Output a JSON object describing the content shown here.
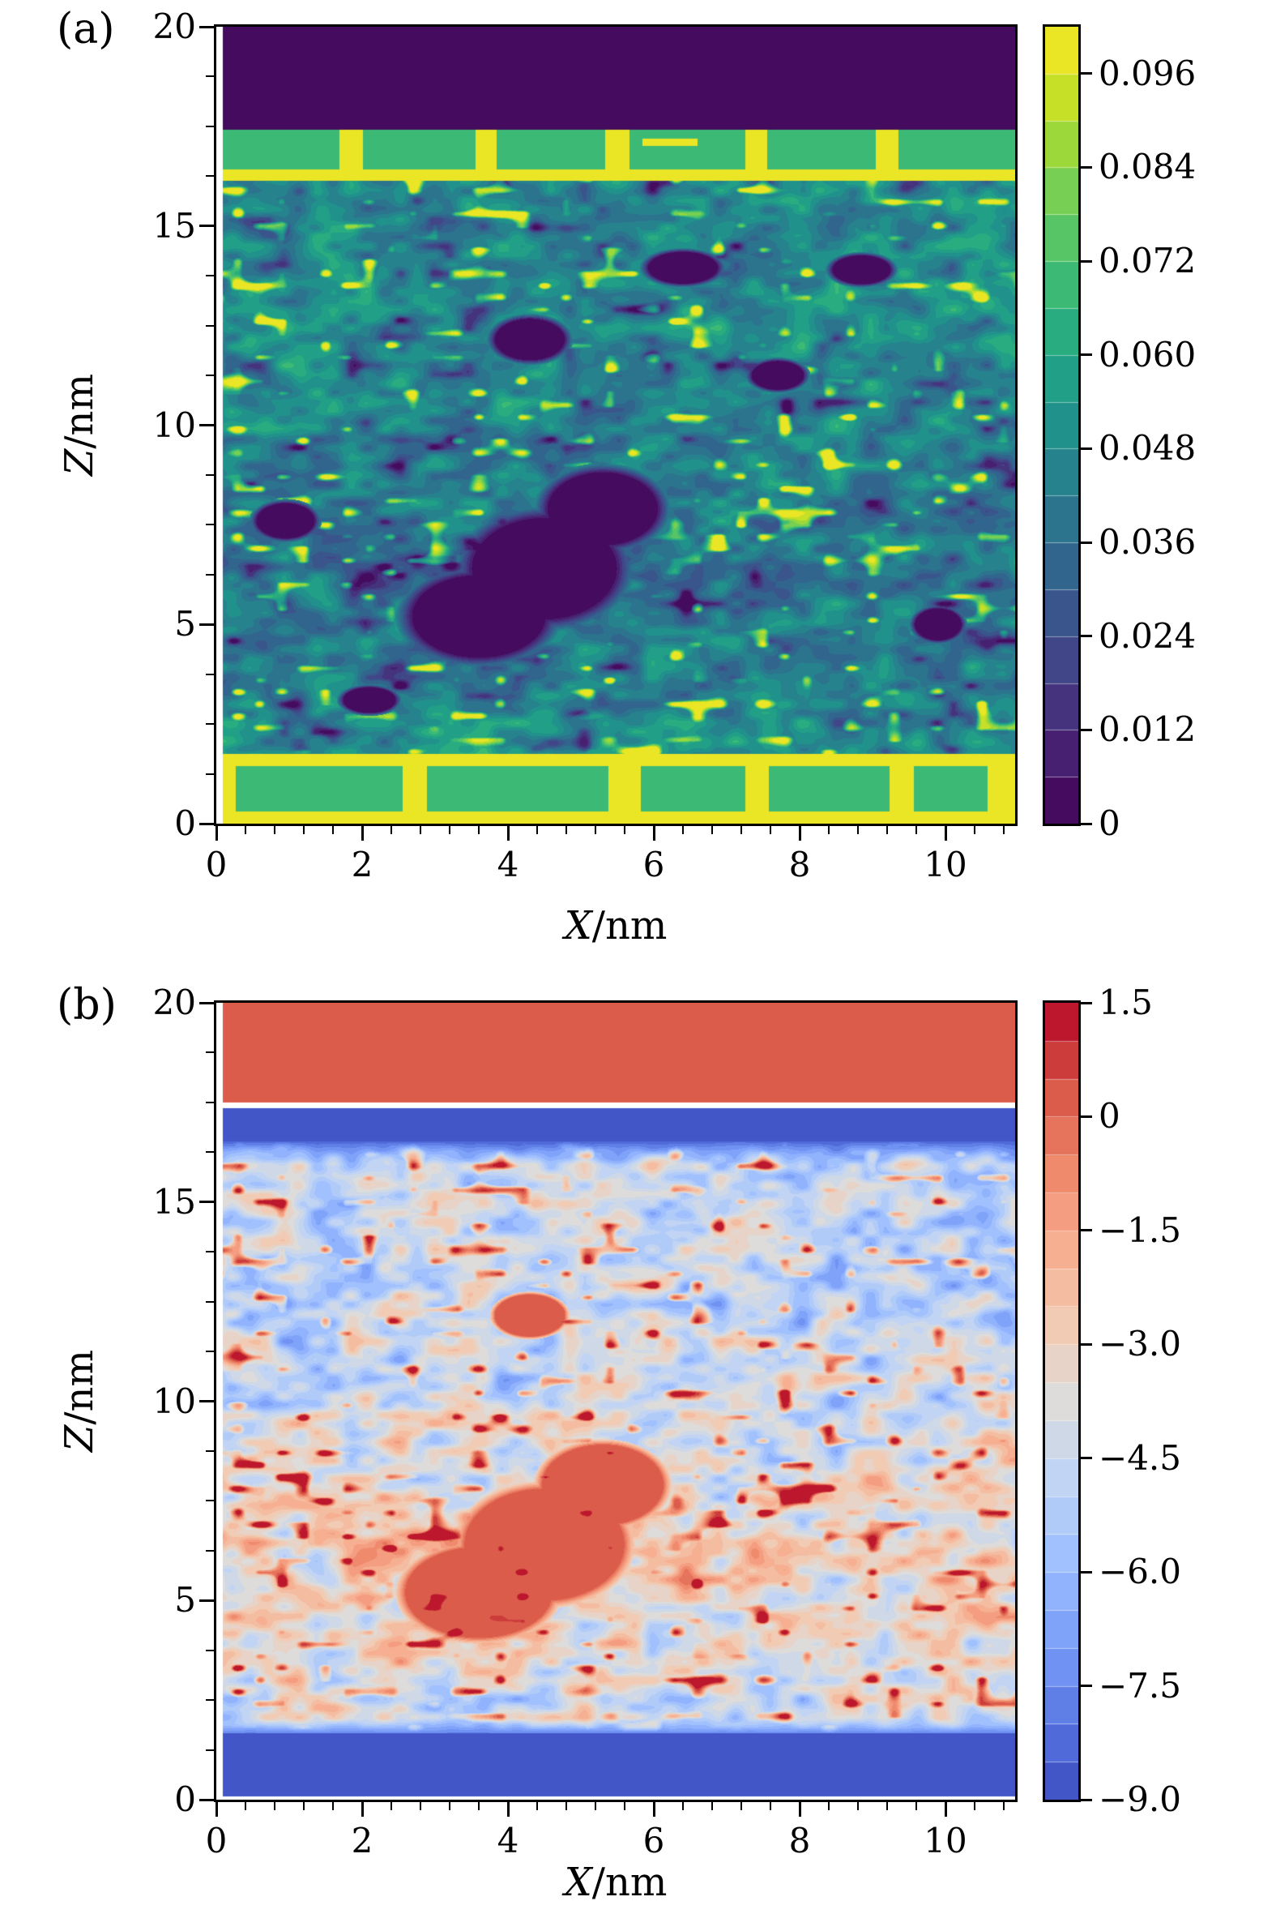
{
  "chart_data": {
    "type": "heatmap",
    "subtype": "filled_contour_two_panel",
    "figure_background": "#ffffff",
    "noise_model": {
      "seeds": [
        101,
        202,
        303
      ],
      "coarse_scale_nm": 0.5,
      "fine_scale_nm": 0.23,
      "speckle_scale_nm": 0.3,
      "coarse_weight": 0.55,
      "fine_weight": 0.45
    },
    "colormaps": {
      "viridis": [
        {
          "f": 0.0,
          "c": "#440154"
        },
        {
          "f": 0.1,
          "c": "#482475"
        },
        {
          "f": 0.2,
          "c": "#414487"
        },
        {
          "f": 0.3,
          "c": "#355f8d"
        },
        {
          "f": 0.4,
          "c": "#2a788e"
        },
        {
          "f": 0.5,
          "c": "#21918c"
        },
        {
          "f": 0.6,
          "c": "#22a884"
        },
        {
          "f": 0.7,
          "c": "#44bf70"
        },
        {
          "f": 0.8,
          "c": "#7ad151"
        },
        {
          "f": 0.9,
          "c": "#bddf26"
        },
        {
          "f": 1.0,
          "c": "#fde725"
        }
      ],
      "coolwarm": [
        {
          "f": 0.0,
          "c": "#3b4cc0"
        },
        {
          "f": 0.1,
          "c": "#5977e3"
        },
        {
          "f": 0.2,
          "c": "#7b9ff9"
        },
        {
          "f": 0.3,
          "c": "#9ebeff"
        },
        {
          "f": 0.4,
          "c": "#c0d4f5"
        },
        {
          "f": 0.5,
          "c": "#dddcdb"
        },
        {
          "f": 0.6,
          "c": "#f2cab1"
        },
        {
          "f": 0.7,
          "c": "#f7ac8e"
        },
        {
          "f": 0.8,
          "c": "#ee8468"
        },
        {
          "f": 0.9,
          "c": "#d65244"
        },
        {
          "f": 1.0,
          "c": "#b40426"
        }
      ]
    },
    "panels": [
      {
        "label": "(a)",
        "x_axis": {
          "variable": "X",
          "unit_suffix": "/nm",
          "range": [
            0,
            10.96
          ],
          "minor_step": 0.4,
          "major_ticks": [
            {
              "v": 0,
              "label": "0"
            },
            {
              "v": 2,
              "label": "2"
            },
            {
              "v": 4,
              "label": "4"
            },
            {
              "v": 6,
              "label": "6"
            },
            {
              "v": 8,
              "label": "8"
            },
            {
              "v": 10,
              "label": "10"
            }
          ]
        },
        "y_axis": {
          "variable": "Z",
          "unit_suffix": "/nm",
          "range": [
            0,
            20
          ],
          "minor_step": 1.25,
          "major_ticks": [
            {
              "v": 0,
              "label": "0"
            },
            {
              "v": 5,
              "label": "5"
            },
            {
              "v": 10,
              "label": "10"
            },
            {
              "v": 15,
              "label": "15"
            },
            {
              "v": 20,
              "label": "20"
            }
          ]
        },
        "colorbar": {
          "colormap": "viridis",
          "vmin": 0,
          "vmax": 0.102,
          "level_step": 0.006,
          "ticks": [
            {
              "v": 0.096,
              "label": "0.096"
            },
            {
              "v": 0.084,
              "label": "0.084"
            },
            {
              "v": 0.072,
              "label": "0.072"
            },
            {
              "v": 0.06,
              "label": "0.060"
            },
            {
              "v": 0.048,
              "label": "0.048"
            },
            {
              "v": 0.036,
              "label": "0.036"
            },
            {
              "v": 0.024,
              "label": "0.024"
            },
            {
              "v": 0.012,
              "label": "0.012"
            },
            {
              "v": 0,
              "label": "0"
            }
          ]
        },
        "field": {
          "data_x_start": 0.09,
          "clamp": [
            0.0008,
            0.1012
          ],
          "bands": [
            {
              "name": "vacuum-top",
              "zmin": 17.42,
              "zmax": 20.01,
              "value": 0.001
            },
            {
              "name": "adlayer-top",
              "zmin": 16.42,
              "zmax": 17.42,
              "value": 0.068,
              "streak_value": 0.1,
              "streaks": [
                {
                  "x": 1.85,
                  "w": 0.32
                },
                {
                  "x": 3.7,
                  "w": 0.28
                },
                {
                  "x": 5.5,
                  "w": 0.34
                },
                {
                  "x": 7.4,
                  "w": 0.3
                },
                {
                  "x": 9.2,
                  "w": 0.32
                }
              ],
              "spurs": [
                {
                  "x0": 5.85,
                  "x1": 6.6,
                  "z0": 17.0,
                  "z1": 17.2
                }
              ]
            },
            {
              "name": "stripe-top",
              "zmin": 16.14,
              "zmax": 16.42,
              "value": 0.1
            },
            {
              "name": "stripe-bottom-upper",
              "zmin": 1.45,
              "zmax": 1.75,
              "value": 0.1
            },
            {
              "name": "adlayer-bottom",
              "zmin": 0.3,
              "zmax": 1.45,
              "value": 0.068,
              "streak_value": 0.1,
              "streaks": [
                {
                  "x": 0.12,
                  "w": 0.3
                },
                {
                  "x": 2.72,
                  "w": 0.34
                },
                {
                  "x": 5.6,
                  "w": 0.45
                },
                {
                  "x": 7.42,
                  "w": 0.32
                },
                {
                  "x": 9.4,
                  "w": 0.34
                },
                {
                  "x": 10.78,
                  "w": 0.4
                }
              ]
            },
            {
              "name": "stripe-bottom-lower",
              "zmin": 0,
              "zmax": 0.3,
              "value": 0.1
            }
          ],
          "noise": {
            "zmin": 1.75,
            "zmax": 16.14,
            "base": 0.046,
            "amplitude": 0.026,
            "speckle_threshold": 0.55,
            "speckle_gain": 0.18,
            "dark_threshold": -0.45,
            "dark_gain": 0.06,
            "mid_depression": {
              "z_center": 6.5,
              "z_sigma": 3.2,
              "amount": 0.009
            },
            "bottom_boost": {
              "z_below": 2.5,
              "gain": 0.02
            }
          },
          "blob_value": 0.002,
          "blob_mode": "low",
          "blobs": [
            {
              "x": 3.6,
              "z": 5.2,
              "rx": 1.15,
              "rz": 1.3
            },
            {
              "x": 4.5,
              "z": 6.4,
              "rx": 1.25,
              "rz": 1.6
            },
            {
              "x": 5.3,
              "z": 7.9,
              "rx": 0.95,
              "rz": 1.15
            },
            {
              "x": 4.3,
              "z": 12.15,
              "rx": 0.6,
              "rz": 0.65
            },
            {
              "x": 0.95,
              "z": 7.6,
              "rx": 0.5,
              "rz": 0.55
            },
            {
              "x": 6.4,
              "z": 13.95,
              "rx": 0.6,
              "rz": 0.5
            },
            {
              "x": 8.85,
              "z": 13.9,
              "rx": 0.5,
              "rz": 0.45
            },
            {
              "x": 7.7,
              "z": 11.25,
              "rx": 0.45,
              "rz": 0.45
            },
            {
              "x": 2.1,
              "z": 3.1,
              "rx": 0.45,
              "rz": 0.4
            },
            {
              "x": 9.9,
              "z": 5.0,
              "rx": 0.4,
              "rz": 0.5
            }
          ]
        }
      },
      {
        "label": "(b)",
        "x_axis": {
          "variable": "X",
          "unit_suffix": "/nm",
          "range": [
            0,
            10.96
          ],
          "minor_step": 0.4,
          "major_ticks": [
            {
              "v": 0,
              "label": "0"
            },
            {
              "v": 2,
              "label": "2"
            },
            {
              "v": 4,
              "label": "4"
            },
            {
              "v": 6,
              "label": "6"
            },
            {
              "v": 8,
              "label": "8"
            },
            {
              "v": 10,
              "label": "10"
            }
          ]
        },
        "y_axis": {
          "variable": "Z",
          "unit_suffix": "/nm",
          "range": [
            0,
            20
          ],
          "minor_step": 1.25,
          "major_ticks": [
            {
              "v": 0,
              "label": "0"
            },
            {
              "v": 5,
              "label": "5"
            },
            {
              "v": 10,
              "label": "10"
            },
            {
              "v": 15,
              "label": "15"
            },
            {
              "v": 20,
              "label": "20"
            }
          ]
        },
        "colorbar": {
          "colormap": "coolwarm",
          "vmin": -9.0,
          "vmax": 1.5,
          "level_step": 0.5,
          "ticks": [
            {
              "v": 1.5,
              "label": "1.5"
            },
            {
              "v": 0,
              "label": "0"
            },
            {
              "v": -1.5,
              "label": "−1.5"
            },
            {
              "v": -3.0,
              "label": "−3.0"
            },
            {
              "v": -4.5,
              "label": "−4.5"
            },
            {
              "v": -6.0,
              "label": "−6.0"
            },
            {
              "v": -7.5,
              "label": "−7.5"
            },
            {
              "v": -9.0,
              "label": "−9.0"
            }
          ]
        },
        "field": {
          "data_x_start": 0.09,
          "clamp": [
            -8.93,
            1.43
          ],
          "bands": [
            {
              "name": "top-region",
              "zmin": 17.5,
              "zmax": 20.01,
              "value": 0.28
            },
            {
              "name": "gap-line-top",
              "zmin": 17.36,
              "zmax": 17.5,
              "value": null
            },
            {
              "name": "interface-top",
              "zmin": 16.52,
              "zmax": 17.36,
              "value": -8.7
            },
            {
              "name": "interface-bottom",
              "zmin": 0.08,
              "zmax": 1.66,
              "value": -8.7
            },
            {
              "name": "gap-line-bottom",
              "zmin": 0,
              "zmax": 0.08,
              "value": null
            }
          ],
          "noise": {
            "zmin": 1.66,
            "zmax": 16.52,
            "base": -4.6,
            "amplitude": 3.1,
            "invert": true,
            "speckle_threshold": 0.52,
            "speckle_gain": 14,
            "mid_boost": {
              "z_center": 6.0,
              "z_sigma": 3.3,
              "amount": 1.7
            },
            "top_blend": {
              "z_from": 15.95,
              "z_to": 16.52,
              "target": -8.4
            },
            "bottom_blend": {
              "z_from": 2.05,
              "z_to": 1.66,
              "target": -7.6
            }
          },
          "blob_value": 0.28,
          "blob_mode": "high",
          "blobs": [
            {
              "x": 3.6,
              "z": 5.2,
              "rx": 1.15,
              "rz": 1.3
            },
            {
              "x": 4.5,
              "z": 6.4,
              "rx": 1.25,
              "rz": 1.6
            },
            {
              "x": 5.3,
              "z": 7.9,
              "rx": 0.95,
              "rz": 1.15
            },
            {
              "x": 4.3,
              "z": 12.15,
              "rx": 0.55,
              "rz": 0.6
            }
          ]
        }
      }
    ]
  }
}
